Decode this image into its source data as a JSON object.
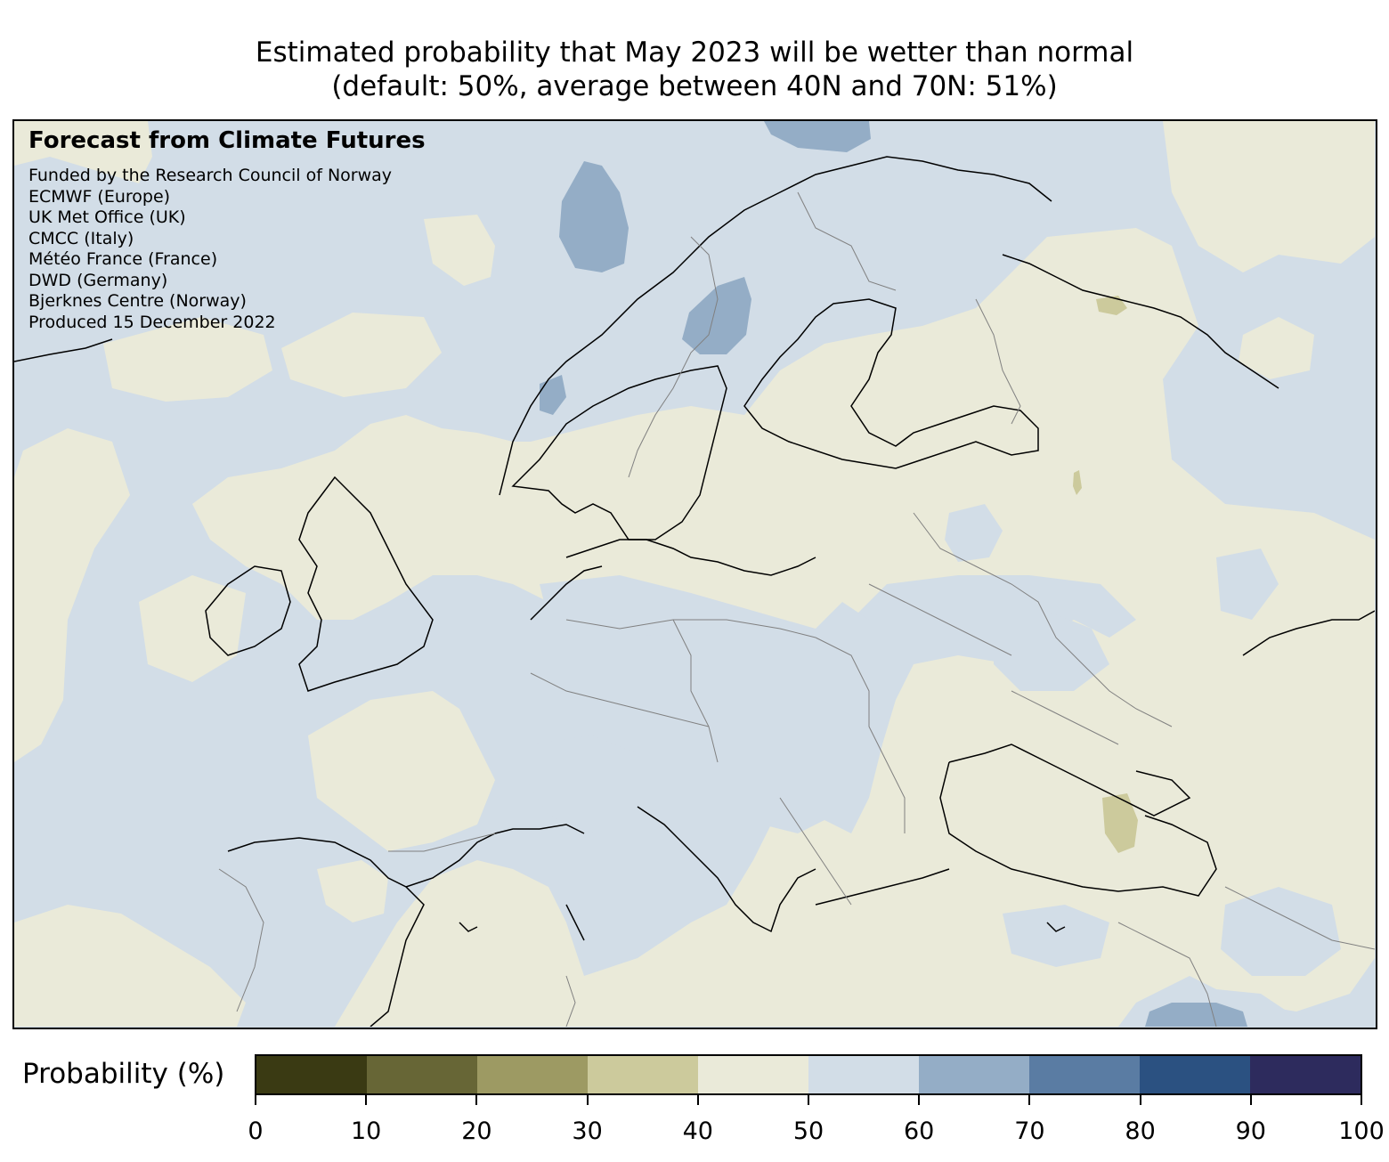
{
  "title": {
    "line1": "Estimated probability that May 2023 will be wetter than normal",
    "line2": "(default: 50%, average between 40N and 70N: 51%)"
  },
  "credits": {
    "heading": "Forecast from Climate Futures",
    "lines": [
      "Funded by the Research Council of Norway",
      "ECMWF (Europe)",
      "UK Met Office (UK)",
      "CMCC (Italy)",
      "Météo France (France)",
      "DWD (Germany)",
      "Bjerknes Centre (Norway)",
      "Produced 15 December 2022"
    ]
  },
  "colorbar": {
    "label": "Probability (%)",
    "ticks": [
      "0",
      "10",
      "20",
      "30",
      "40",
      "50",
      "60",
      "70",
      "80",
      "90",
      "100"
    ],
    "bins": [
      {
        "range": [
          0,
          10
        ],
        "color": "#3a3a13"
      },
      {
        "range": [
          10,
          20
        ],
        "color": "#676636"
      },
      {
        "range": [
          20,
          30
        ],
        "color": "#9d9a63"
      },
      {
        "range": [
          30,
          40
        ],
        "color": "#ccca9c"
      },
      {
        "range": [
          40,
          50
        ],
        "color": "#eaead9"
      },
      {
        "range": [
          50,
          60
        ],
        "color": "#d2dde7"
      },
      {
        "range": [
          60,
          70
        ],
        "color": "#94adc6"
      },
      {
        "range": [
          70,
          80
        ],
        "color": "#5a7ca3"
      },
      {
        "range": [
          80,
          90
        ],
        "color": "#2b5181"
      },
      {
        "range": [
          90,
          100
        ],
        "color": "#2d2b5d"
      }
    ]
  },
  "map": {
    "region": "Europe",
    "colors": {
      "ocean_bg": "#d2dde7",
      "below_normal": "#eaead9",
      "low": "#ccca9c",
      "wet": "#94adc6",
      "coastline": "#000000",
      "borders": "#808080"
    }
  }
}
